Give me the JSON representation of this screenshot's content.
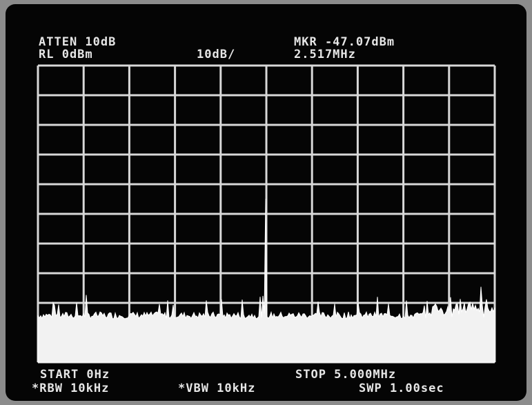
{
  "header": {
    "atten": "ATTEN 10dB",
    "ref_level": "RL 0dBm",
    "scale": "10dB/",
    "marker_level": "MKR -47.07dBm",
    "marker_freq": "2.517MHz"
  },
  "footer": {
    "start": "START 0Hz",
    "stop": "STOP 5.000MHz",
    "rbw": "*RBW 10kHz",
    "vbw": "*VBW 10kHz",
    "sweep": "SWP 1.00sec"
  }
}
